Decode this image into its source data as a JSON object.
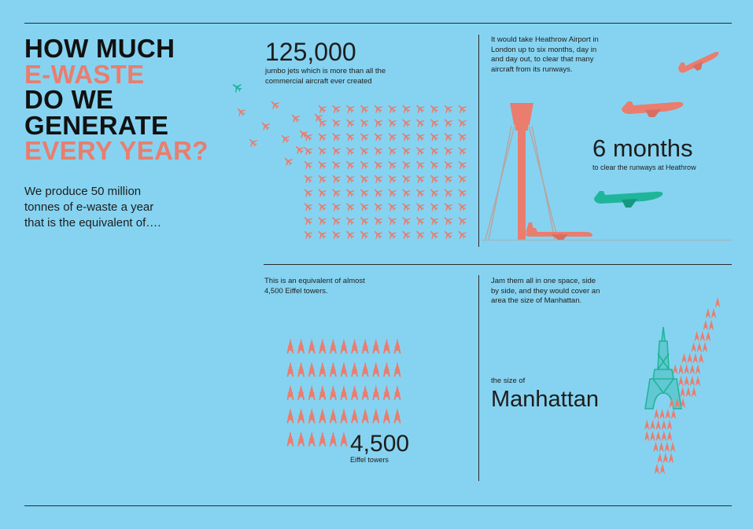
{
  "header": {
    "title_lines": [
      {
        "text": "HOW MUCH",
        "accent": false
      },
      {
        "text": "E-WASTE",
        "accent": true
      },
      {
        "text": "DO WE",
        "accent": false
      },
      {
        "text": "GENERATE",
        "accent": false
      },
      {
        "text": "EVERY YEAR?",
        "accent": true
      }
    ],
    "intro": "We produce 50 million tonnes of e-waste a year that is the equivalent of…."
  },
  "jets": {
    "number": "125,000",
    "caption": "jumbo jets which is more than all the commercial aircraft ever created"
  },
  "heathrow": {
    "text": "It would take Heathrow Airport in London up to six months, day in and day out, to clear that many aircraft from its runways.",
    "number": "6 months",
    "caption": "to clear the runways at Heathrow"
  },
  "eiffel": {
    "text": "This is an equivalent of almost 4,500 Eiffel towers.",
    "number": "4,500",
    "caption": "Eiffel towers"
  },
  "manhattan": {
    "text": "Jam them all in one space, side by side, and they would cover an area the size of Manhattan.",
    "label_small": "the size of",
    "label_big": "Manhattan"
  },
  "colors": {
    "background": "#86d3f1",
    "coral": "#ea7d6e",
    "green": "#1fb59a",
    "dark": "#1d1d1b"
  },
  "icons": [
    "plane-icon",
    "control-tower-icon",
    "eiffel-tower-icon"
  ]
}
